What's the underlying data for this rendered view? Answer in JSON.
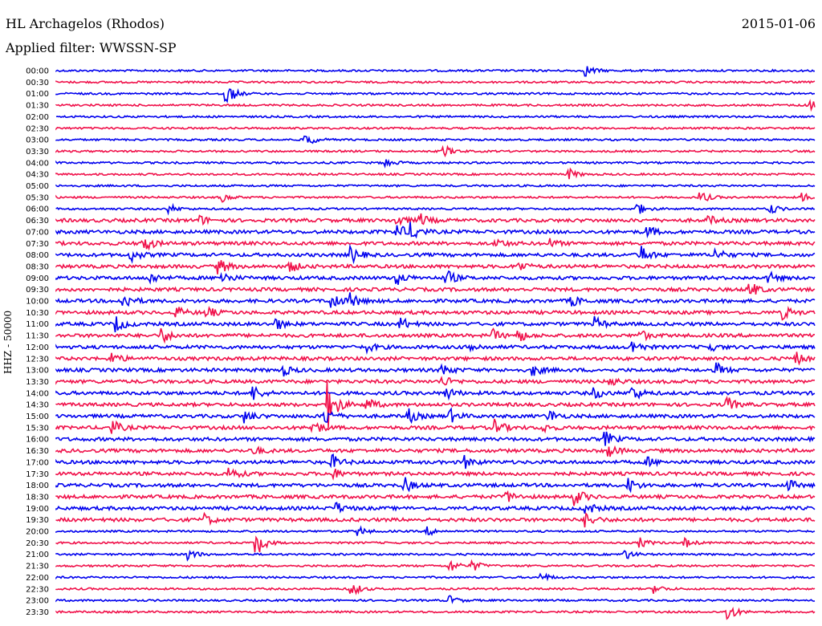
{
  "header": {
    "station": "HL Archagelos (Rhodos)",
    "date": "2015-01-06",
    "filter": "Applied filter: WWSSN-SP"
  },
  "chart_data": {
    "type": "line",
    "ylabel": "HHZ - 50000",
    "colors": [
      "#0000ee",
      "#f0104a"
    ],
    "rows": [
      {
        "label": "00:00",
        "events": [
          [
            0.7,
            6
          ]
        ]
      },
      {
        "label": "00:30",
        "events": []
      },
      {
        "label": "01:00",
        "events": [
          [
            0.225,
            14
          ]
        ]
      },
      {
        "label": "01:30",
        "events": [
          [
            0.99,
            8
          ]
        ]
      },
      {
        "label": "02:00",
        "events": []
      },
      {
        "label": "02:30",
        "events": []
      },
      {
        "label": "03:00",
        "events": [
          [
            0.33,
            8
          ]
        ]
      },
      {
        "label": "03:30",
        "events": [
          [
            0.51,
            8
          ]
        ]
      },
      {
        "label": "04:00",
        "events": [
          [
            0.435,
            5
          ]
        ]
      },
      {
        "label": "04:30",
        "events": [
          [
            0.675,
            7
          ]
        ]
      },
      {
        "label": "05:00",
        "events": []
      },
      {
        "label": "05:30",
        "events": [
          [
            0.22,
            5
          ],
          [
            0.85,
            7
          ],
          [
            0.985,
            5
          ]
        ]
      },
      {
        "label": "06:00",
        "events": [
          [
            0.15,
            5
          ],
          [
            0.765,
            8
          ],
          [
            0.94,
            7
          ]
        ]
      },
      {
        "label": "06:30",
        "events": [
          [
            0.19,
            5
          ],
          [
            0.45,
            6
          ],
          [
            0.48,
            7
          ],
          [
            0.86,
            5
          ]
        ]
      },
      {
        "label": "07:00",
        "events": [
          [
            0.45,
            9
          ],
          [
            0.47,
            9
          ],
          [
            0.78,
            6
          ]
        ]
      },
      {
        "label": "07:30",
        "events": [
          [
            0.115,
            12
          ],
          [
            0.58,
            6
          ],
          [
            0.65,
            5
          ]
        ]
      },
      {
        "label": "08:00",
        "events": [
          [
            0.1,
            7
          ],
          [
            0.39,
            9
          ],
          [
            0.77,
            12
          ],
          [
            0.87,
            7
          ]
        ]
      },
      {
        "label": "08:30",
        "events": [
          [
            0.215,
            9
          ],
          [
            0.31,
            6
          ],
          [
            0.61,
            6
          ]
        ]
      },
      {
        "label": "09:00",
        "events": [
          [
            0.125,
            6
          ],
          [
            0.22,
            7
          ],
          [
            0.45,
            7
          ],
          [
            0.515,
            9
          ],
          [
            0.94,
            6
          ]
        ]
      },
      {
        "label": "09:30",
        "events": [
          [
            0.915,
            9
          ]
        ]
      },
      {
        "label": "10:00",
        "events": [
          [
            0.09,
            10
          ],
          [
            0.365,
            10
          ],
          [
            0.39,
            8
          ],
          [
            0.68,
            6
          ]
        ]
      },
      {
        "label": "10:30",
        "events": [
          [
            0.16,
            6
          ],
          [
            0.2,
            6
          ],
          [
            0.96,
            7
          ]
        ]
      },
      {
        "label": "11:00",
        "events": [
          [
            0.08,
            9
          ],
          [
            0.29,
            7
          ],
          [
            0.455,
            7
          ],
          [
            0.71,
            8
          ]
        ]
      },
      {
        "label": "11:30",
        "events": [
          [
            0.14,
            9
          ],
          [
            0.575,
            7
          ],
          [
            0.61,
            7
          ],
          [
            0.77,
            6
          ]
        ]
      },
      {
        "label": "12:00",
        "events": [
          [
            0.41,
            5
          ],
          [
            0.545,
            6
          ],
          [
            0.76,
            8
          ],
          [
            0.86,
            5
          ]
        ]
      },
      {
        "label": "12:30",
        "events": [
          [
            0.075,
            7
          ],
          [
            0.975,
            7
          ]
        ]
      },
      {
        "label": "13:00",
        "events": [
          [
            0.3,
            6
          ],
          [
            0.51,
            7
          ],
          [
            0.63,
            6
          ],
          [
            0.87,
            8
          ]
        ]
      },
      {
        "label": "13:30",
        "events": [
          [
            0.51,
            6
          ],
          [
            0.73,
            5
          ]
        ]
      },
      {
        "label": "14:00",
        "events": [
          [
            0.26,
            9
          ],
          [
            0.515,
            7
          ],
          [
            0.71,
            6
          ],
          [
            0.76,
            9
          ]
        ]
      },
      {
        "label": "14:30",
        "events": [
          [
            0.36,
            28
          ],
          [
            0.41,
            8
          ],
          [
            0.885,
            8
          ]
        ]
      },
      {
        "label": "15:00",
        "events": [
          [
            0.25,
            7
          ],
          [
            0.355,
            10
          ],
          [
            0.465,
            8
          ],
          [
            0.52,
            7
          ],
          [
            0.65,
            7
          ]
        ]
      },
      {
        "label": "15:30",
        "events": [
          [
            0.075,
            8
          ],
          [
            0.34,
            8
          ],
          [
            0.58,
            9
          ],
          [
            0.64,
            6
          ]
        ]
      },
      {
        "label": "16:00",
        "events": [
          [
            0.725,
            8
          ]
        ]
      },
      {
        "label": "16:30",
        "events": [
          [
            0.26,
            5
          ],
          [
            0.73,
            6
          ]
        ]
      },
      {
        "label": "17:00",
        "events": [
          [
            0.365,
            8
          ],
          [
            0.54,
            7
          ],
          [
            0.78,
            5
          ]
        ]
      },
      {
        "label": "17:30",
        "events": [
          [
            0.23,
            8
          ],
          [
            0.365,
            6
          ]
        ]
      },
      {
        "label": "18:00",
        "events": [
          [
            0.46,
            8
          ],
          [
            0.755,
            8
          ],
          [
            0.965,
            6
          ]
        ]
      },
      {
        "label": "18:30",
        "events": [
          [
            0.595,
            6
          ],
          [
            0.685,
            10
          ]
        ]
      },
      {
        "label": "19:00",
        "events": [
          [
            0.37,
            6
          ],
          [
            0.7,
            7
          ]
        ]
      },
      {
        "label": "19:30",
        "events": [
          [
            0.195,
            7
          ],
          [
            0.7,
            8
          ]
        ]
      },
      {
        "label": "20:00",
        "events": [
          [
            0.4,
            5
          ],
          [
            0.49,
            5
          ]
        ]
      },
      {
        "label": "20:30",
        "events": [
          [
            0.265,
            15
          ],
          [
            0.77,
            6
          ],
          [
            0.83,
            5
          ]
        ]
      },
      {
        "label": "21:00",
        "events": [
          [
            0.175,
            7
          ],
          [
            0.75,
            6
          ]
        ]
      },
      {
        "label": "21:30",
        "events": [
          [
            0.52,
            7
          ],
          [
            0.55,
            6
          ]
        ]
      },
      {
        "label": "22:00",
        "events": [
          [
            0.64,
            5
          ]
        ]
      },
      {
        "label": "22:30",
        "events": [
          [
            0.39,
            9
          ],
          [
            0.79,
            5
          ]
        ]
      },
      {
        "label": "23:00",
        "events": [
          [
            0.52,
            5
          ]
        ]
      },
      {
        "label": "23:30",
        "events": [
          [
            0.885,
            11
          ]
        ]
      }
    ]
  }
}
